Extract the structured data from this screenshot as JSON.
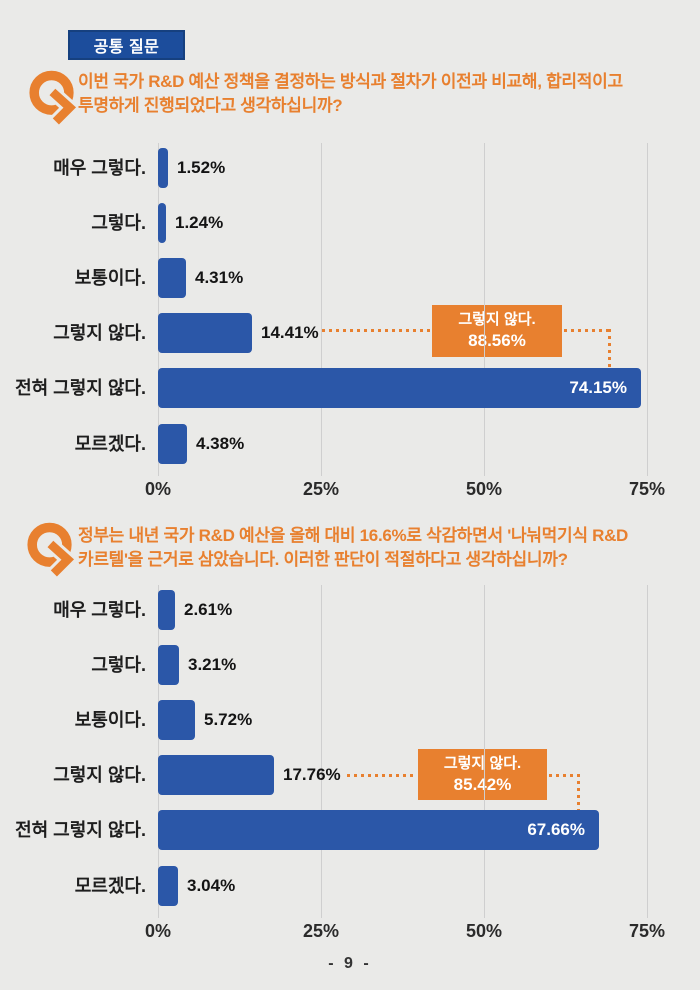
{
  "page": {
    "badge_label": "공통 질문",
    "page_number": "- 9 -"
  },
  "colors": {
    "background": "#eaeae8",
    "bar_blue": "#2b57a8",
    "accent_orange": "#e8802f",
    "badge_blue": "#1c4d9c",
    "badge_border": "#16407f",
    "grid_gray": "#cfcfcf",
    "text_dark": "#1e1e1e"
  },
  "chart_data": [
    {
      "type": "bar",
      "orientation": "horizontal",
      "question_lines": [
        "이번 국가  R&D 예산 정책을 결정하는 방식과 절차가 이전과 비교해, 합리적이고",
        "투명하게 진행되었다고 생각하십니까?"
      ],
      "categories": [
        "매우 그렇다.",
        "그렇다.",
        "보통이다.",
        "그렇지 않다.",
        "전혀 그렇지 않다.",
        "모르겠다."
      ],
      "values": [
        1.52,
        1.24,
        4.31,
        14.41,
        74.15,
        4.38
      ],
      "value_labels": [
        "1.52%",
        "1.24%",
        "4.31%",
        "14.41%",
        "74.15%",
        "4.38%"
      ],
      "x_ticks": [
        {
          "label": "0%",
          "value": 0
        },
        {
          "label": "25%",
          "value": 25
        },
        {
          "label": "50%",
          "value": 50
        },
        {
          "label": "75%",
          "value": 75
        }
      ],
      "xlim": [
        0,
        78
      ],
      "grid": true,
      "callout": {
        "line1": "그렇지 않다.",
        "line2": "88.56%"
      }
    },
    {
      "type": "bar",
      "orientation": "horizontal",
      "question_lines": [
        "정부는 내년 국가 R&D 예산을 올해 대비 16.6%로 삭감하면서  '나눠먹기식 R&D",
        "카르텔'을 근거로 삼았습니다. 이러한 판단이 적절하다고 생각하십니까?"
      ],
      "categories": [
        "매우 그렇다.",
        "그렇다.",
        "보통이다.",
        "그렇지 않다.",
        "전혀 그렇지 않다.",
        "모르겠다."
      ],
      "values": [
        2.61,
        3.21,
        5.72,
        17.76,
        67.66,
        3.04
      ],
      "value_labels": [
        "2.61%",
        "3.21%",
        "5.72%",
        "17.76%",
        "67.66%",
        "3.04%"
      ],
      "x_ticks": [
        {
          "label": "0%",
          "value": 0
        },
        {
          "label": "25%",
          "value": 25
        },
        {
          "label": "50%",
          "value": 50
        },
        {
          "label": "75%",
          "value": 75
        }
      ],
      "xlim": [
        0,
        78
      ],
      "grid": true,
      "callout": {
        "line1": "그렇지 않다.",
        "line2": "85.42%"
      }
    }
  ]
}
